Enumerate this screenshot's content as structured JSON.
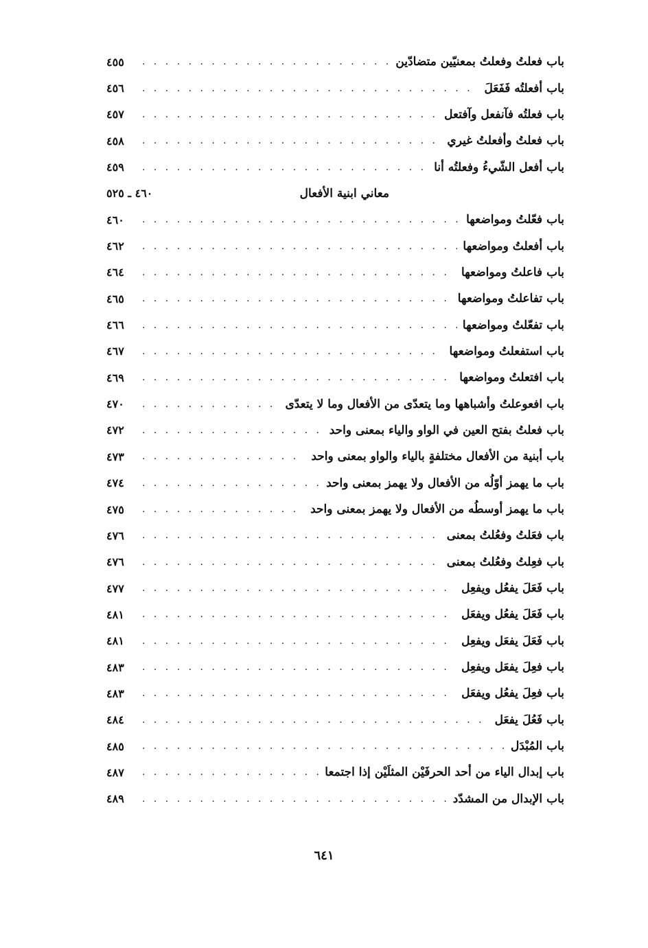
{
  "entries_before": [
    {
      "title": "باب فعلتُ وفعلتُ بمعنيّين متضادّين",
      "page": "٤٥٥"
    },
    {
      "title": "باب أفعلتُه فَفَعَلَ",
      "page": "٤٥٦"
    },
    {
      "title": "باب فعلتُه فآنفعل وآفتعل",
      "page": "٤٥٧"
    },
    {
      "title": "باب فعلتُ وأفعلتُ غيري",
      "page": "٤٥٨"
    },
    {
      "title": "باب أفعل الشّيءُ وفعلتُه أنا",
      "page": "٤٥٩"
    }
  ],
  "section": {
    "title": "معاني ابنية الأفعال",
    "pages": "٤٦٠ ـ ٥٢٥"
  },
  "entries": [
    {
      "title": "باب فعّلتُ ومواضعها",
      "page": "٤٦٠"
    },
    {
      "title": "باب أفعلتُ ومواضعها",
      "page": "٤٦٢"
    },
    {
      "title": "باب فاعلتُ ومواضعها",
      "page": "٤٦٤"
    },
    {
      "title": "باب تفاعلتُ ومواضعها",
      "page": "٤٦٥"
    },
    {
      "title": "باب تفعّلتُ ومواضعها",
      "page": "٤٦٦"
    },
    {
      "title": "باب استفعلتُ ومواضعها",
      "page": "٤٦٧"
    },
    {
      "title": "باب افتعلتُ ومواضعها",
      "page": "٤٦٩"
    },
    {
      "title": "باب افعوعلتُ وأشباهها وما يتعدّى من الأفعال وما لا يتعدّى",
      "page": "٤٧٠"
    },
    {
      "title": "باب فعلتُ بفتح العين في الواو والياء بمعنى واحد",
      "page": "٤٧٢"
    },
    {
      "title": "باب أبنية من الأفعال مختلفةٍ بالياء والواو بمعنى واحد",
      "page": "٤٧٣"
    },
    {
      "title": "باب ما يهمز أوّلُه من الأفعال ولا يهمز بمعنى واحد",
      "page": "٤٧٤"
    },
    {
      "title": "باب ما يهمز أوسطُه من الأفعال ولا يهمز بمعنى واحد",
      "page": "٤٧٥"
    },
    {
      "title": "باب فعَلتُ وفعُلتُ بمعنى",
      "page": "٤٧٦"
    },
    {
      "title": "باب فعِلتُ وفعُلتُ بمعنى",
      "page": "٤٧٦"
    },
    {
      "title": "باب فَعَلَ يفعُل ويفعِل",
      "page": "٤٧٧"
    },
    {
      "title": "باب فَعَلَ يفعُل ويفعَل",
      "page": "٤٨١"
    },
    {
      "title": "باب فَعَلَ يفعَل ويفعِل",
      "page": "٤٨١"
    },
    {
      "title": "باب فعِلَ يفعَل ويفعِل",
      "page": "٤٨٣"
    },
    {
      "title": "باب فعِلَ يفعُل ويفعَل",
      "page": "٤٨٣"
    },
    {
      "title": "باب فَعُلَ يفعَل",
      "page": "٤٨٤"
    },
    {
      "title": "باب المُبْدَل",
      "page": "٤٨٥"
    },
    {
      "title": "باب إبدال الياء من أحد الحرفَيْن المثلَيْن إذا اجتمعا",
      "page": "٤٨٧"
    },
    {
      "title": "باب الإبدال من المشدّد",
      "page": "٤٨٩"
    }
  ],
  "page_number": "٦٤١"
}
